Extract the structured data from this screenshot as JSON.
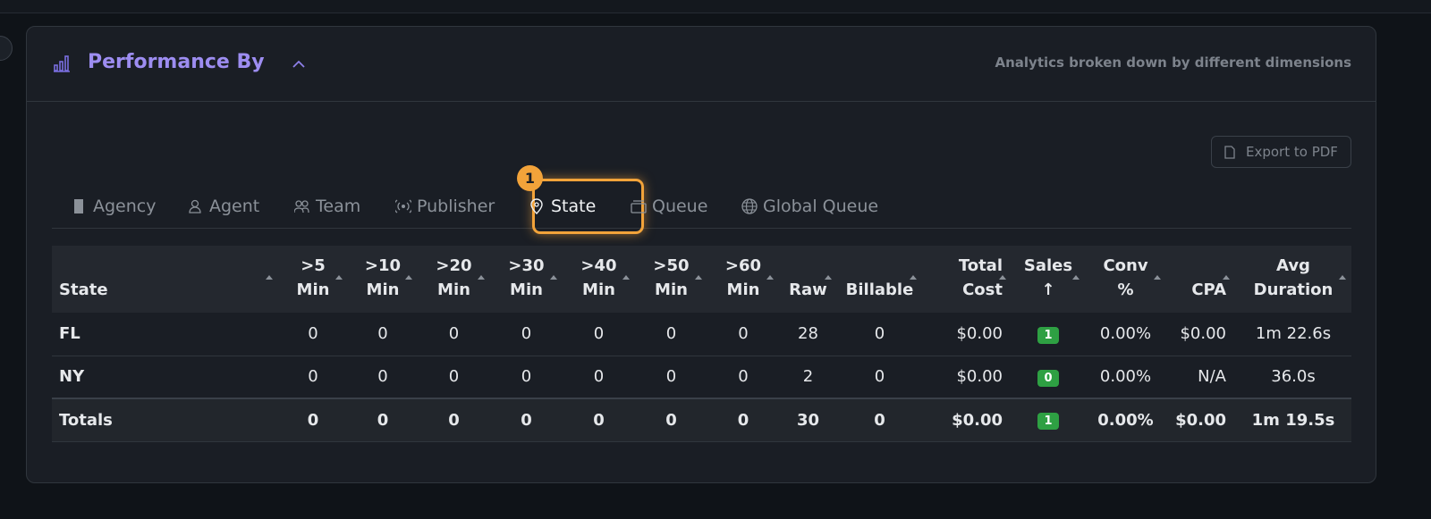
{
  "header": {
    "title": "Performance By",
    "subtitle": "Analytics broken down by different dimensions"
  },
  "export_button": "Export to PDF",
  "tabs": [
    "Agency",
    "Agent",
    "Team",
    "Publisher",
    "State",
    "Queue",
    "Global Queue"
  ],
  "active_tab_badge": "1",
  "table": {
    "columns": [
      [
        "State"
      ],
      [
        ">5",
        "Min"
      ],
      [
        ">10",
        "Min"
      ],
      [
        ">20",
        "Min"
      ],
      [
        ">30",
        "Min"
      ],
      [
        ">40",
        "Min"
      ],
      [
        ">50",
        "Min"
      ],
      [
        ">60",
        "Min"
      ],
      [
        "Raw"
      ],
      [
        "Billable"
      ],
      [
        "Total",
        "Cost"
      ],
      [
        "Sales",
        "↑"
      ],
      [
        "Conv",
        "%"
      ],
      [
        "CPA"
      ],
      [
        "Avg",
        "Duration"
      ]
    ],
    "rows": [
      [
        "FL",
        0,
        0,
        0,
        0,
        0,
        0,
        0,
        28,
        0,
        "$0.00",
        1,
        "0.00%",
        "$0.00",
        "1m 22.6s"
      ],
      [
        "NY",
        0,
        0,
        0,
        0,
        0,
        0,
        0,
        2,
        0,
        "$0.00",
        0,
        "0.00%",
        "N/A",
        "36.0s"
      ]
    ],
    "totals": [
      "Totals",
      0,
      0,
      0,
      0,
      0,
      0,
      0,
      30,
      0,
      "$0.00",
      1,
      "0.00%",
      "$0.00",
      "1m 19.5s"
    ]
  }
}
